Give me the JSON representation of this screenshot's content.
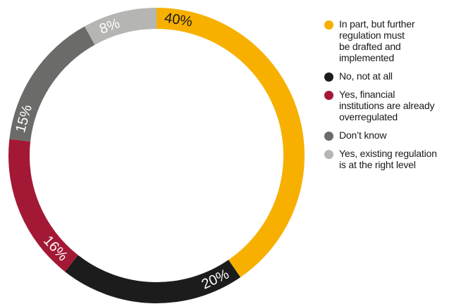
{
  "chart_data": {
    "type": "pie",
    "donut": true,
    "title": "",
    "slices": [
      {
        "label": "In part, but further\nregulation must\nbe drafted and\nimplemented",
        "value": 40,
        "display": "40%",
        "color": "#f7b000",
        "label_color": "#1a1a1a"
      },
      {
        "label": "No, not at all",
        "value": 20,
        "display": "20%",
        "color": "#1c1c1c",
        "label_color": "#ffffff"
      },
      {
        "label": "Yes, financial\ninstitutions are already\noverregulated",
        "value": 16,
        "display": "16%",
        "color": "#a31935",
        "label_color": "#ffffff"
      },
      {
        "label": "Don’t know",
        "value": 15,
        "display": "15%",
        "color": "#6b6b69",
        "label_color": "#ffffff"
      },
      {
        "label": "Yes, existing regulation\nis at the right level",
        "value": 8,
        "display": "8%",
        "color": "#b5b5b3",
        "label_color": "#ffffff"
      }
    ],
    "legend_position": "right"
  }
}
